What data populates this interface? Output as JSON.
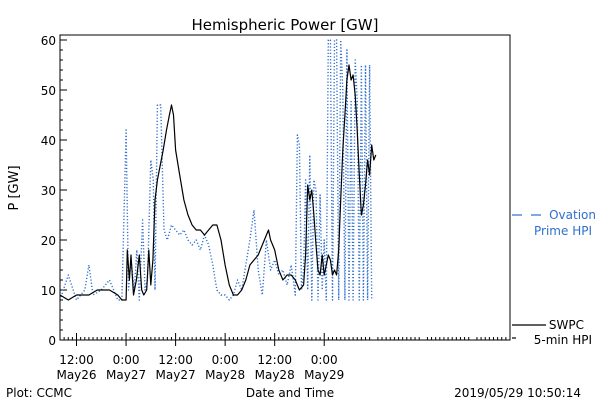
{
  "chart_data": {
    "type": "line",
    "title": "Hemispheric Power [GW]",
    "xlabel": "Date and Time",
    "ylabel": "P [GW]",
    "ylim": [
      0,
      61
    ],
    "xlim": [
      -16,
      93
    ],
    "x_unit": "hours relative to 2019-05-27 00:00 UT",
    "grid": false,
    "y_ticks": [
      0,
      10,
      20,
      30,
      40,
      50,
      60
    ],
    "x_ticks": [
      {
        "x": -12,
        "line1": "12:00",
        "line2": "May26"
      },
      {
        "x": 0,
        "line1": "0:00",
        "line2": "May27"
      },
      {
        "x": 12,
        "line1": "12:00",
        "line2": "May27"
      },
      {
        "x": 24,
        "line1": "0:00",
        "line2": "May28"
      },
      {
        "x": 36,
        "line1": "12:00",
        "line2": "May28"
      },
      {
        "x": 48,
        "line1": "0:00",
        "line2": "May29"
      }
    ],
    "series": [
      {
        "name": "SWPC 5-min HPI",
        "legend_line1": "SWPC",
        "legend_line2": "5-min HPI",
        "color": "#000000",
        "style": "solid",
        "points": [
          [
            -16,
            9
          ],
          [
            -14,
            8
          ],
          [
            -12,
            9
          ],
          [
            -9,
            9
          ],
          [
            -7,
            10
          ],
          [
            -4,
            10
          ],
          [
            -2,
            9
          ],
          [
            -1,
            8
          ],
          [
            0,
            8
          ],
          [
            0.3,
            18
          ],
          [
            0.8,
            12
          ],
          [
            1.2,
            17
          ],
          [
            1.8,
            9
          ],
          [
            2.5,
            12
          ],
          [
            3.2,
            17
          ],
          [
            3.8,
            10
          ],
          [
            4.3,
            9
          ],
          [
            5,
            10
          ],
          [
            5.5,
            18
          ],
          [
            6,
            11
          ],
          [
            6.5,
            16
          ],
          [
            7,
            28
          ],
          [
            7.6,
            32
          ],
          [
            8.3,
            35
          ],
          [
            9,
            38
          ],
          [
            9.8,
            42
          ],
          [
            10.5,
            45
          ],
          [
            11,
            47
          ],
          [
            11.5,
            45
          ],
          [
            12,
            38
          ],
          [
            13,
            33
          ],
          [
            14,
            28
          ],
          [
            15,
            25
          ],
          [
            16,
            23
          ],
          [
            17,
            22
          ],
          [
            18,
            22
          ],
          [
            19,
            21
          ],
          [
            20,
            22
          ],
          [
            21,
            23
          ],
          [
            22,
            23
          ],
          [
            23,
            20
          ],
          [
            24,
            15
          ],
          [
            25,
            11
          ],
          [
            26,
            9
          ],
          [
            27,
            9
          ],
          [
            28,
            10
          ],
          [
            29,
            12
          ],
          [
            30,
            15
          ],
          [
            31,
            16
          ],
          [
            32,
            17
          ],
          [
            33,
            19
          ],
          [
            34,
            21
          ],
          [
            34.5,
            22
          ],
          [
            35,
            20
          ],
          [
            36,
            18
          ],
          [
            37,
            14
          ],
          [
            38,
            12
          ],
          [
            39,
            13
          ],
          [
            40,
            13
          ],
          [
            41,
            12
          ],
          [
            42,
            10
          ],
          [
            43,
            11
          ],
          [
            43.5,
            17
          ],
          [
            44,
            31
          ],
          [
            44.5,
            28
          ],
          [
            45,
            30
          ],
          [
            45.5,
            25
          ],
          [
            46,
            19
          ],
          [
            46.5,
            14
          ],
          [
            47,
            13
          ],
          [
            47.5,
            17
          ],
          [
            48,
            13
          ],
          [
            48.5,
            15
          ],
          [
            49,
            17
          ],
          [
            49.5,
            16
          ],
          [
            50,
            13
          ],
          [
            50.5,
            14
          ],
          [
            51,
            13
          ],
          [
            51.5,
            18
          ],
          [
            52,
            28
          ],
          [
            52.5,
            38
          ],
          [
            53,
            45
          ],
          [
            53.5,
            52
          ],
          [
            54,
            55
          ],
          [
            54.5,
            52
          ],
          [
            55,
            53
          ],
          [
            55.5,
            49
          ],
          [
            56,
            42
          ],
          [
            56.5,
            33
          ],
          [
            57,
            25
          ],
          [
            57.5,
            27
          ],
          [
            58,
            31
          ],
          [
            58.5,
            36
          ],
          [
            59,
            33
          ],
          [
            59.5,
            39
          ],
          [
            60,
            36
          ],
          [
            60.5,
            37
          ]
        ]
      },
      {
        "name": "Ovation Prime HPI",
        "legend_line1": "Ovation",
        "legend_line2": "Prime HPI",
        "color": "#2f6fcf",
        "style": "dotted",
        "points": [
          [
            -16,
            8
          ],
          [
            -14,
            13
          ],
          [
            -12,
            8
          ],
          [
            -10,
            10
          ],
          [
            -9,
            15
          ],
          [
            -8,
            9
          ],
          [
            -6,
            10
          ],
          [
            -4,
            12
          ],
          [
            -2,
            8
          ],
          [
            -1,
            8
          ],
          [
            0,
            42
          ],
          [
            0.6,
            10
          ],
          [
            1.2,
            16
          ],
          [
            2,
            10
          ],
          [
            2.6,
            18
          ],
          [
            3.2,
            8
          ],
          [
            4,
            24
          ],
          [
            4.6,
            10
          ],
          [
            5.2,
            12
          ],
          [
            6,
            36
          ],
          [
            6.6,
            32
          ],
          [
            7,
            10
          ],
          [
            7.6,
            47
          ],
          [
            8.4,
            47
          ],
          [
            9.2,
            22
          ],
          [
            10,
            20
          ],
          [
            11,
            23
          ],
          [
            12,
            22
          ],
          [
            13,
            21
          ],
          [
            14,
            22
          ],
          [
            15,
            20
          ],
          [
            16,
            19
          ],
          [
            17,
            20
          ],
          [
            18,
            18
          ],
          [
            19,
            21
          ],
          [
            20,
            19
          ],
          [
            21,
            15
          ],
          [
            22,
            10
          ],
          [
            23,
            9
          ],
          [
            24,
            9
          ],
          [
            25,
            8
          ],
          [
            26,
            9
          ],
          [
            27,
            12
          ],
          [
            28,
            10
          ],
          [
            29,
            15
          ],
          [
            30,
            20
          ],
          [
            31,
            26
          ],
          [
            32,
            14
          ],
          [
            33,
            9
          ],
          [
            34,
            20
          ],
          [
            35,
            14
          ],
          [
            36,
            16
          ],
          [
            37,
            13
          ],
          [
            38,
            14
          ],
          [
            39,
            11
          ],
          [
            40,
            15
          ],
          [
            41,
            9
          ],
          [
            41.5,
            41
          ],
          [
            42,
            39
          ],
          [
            42.5,
            10
          ],
          [
            43,
            14
          ],
          [
            43.5,
            32
          ],
          [
            44,
            10
          ],
          [
            44.5,
            37
          ],
          [
            45,
            8
          ],
          [
            45.5,
            32
          ],
          [
            46,
            30
          ],
          [
            46.5,
            8
          ],
          [
            47,
            29
          ],
          [
            47.5,
            10
          ],
          [
            48,
            20
          ],
          [
            48.5,
            8
          ],
          [
            49,
            60
          ],
          [
            49.5,
            60
          ],
          [
            50,
            8
          ],
          [
            50.5,
            60
          ],
          [
            51,
            60
          ],
          [
            51.5,
            8
          ],
          [
            52,
            60
          ],
          [
            52.5,
            50
          ],
          [
            53,
            8
          ],
          [
            53.5,
            58
          ],
          [
            54,
            8
          ],
          [
            54.5,
            48
          ],
          [
            55,
            8
          ],
          [
            55.5,
            56
          ],
          [
            56,
            48
          ],
          [
            56.5,
            8
          ],
          [
            57,
            55
          ],
          [
            57.5,
            8
          ],
          [
            58,
            55
          ],
          [
            58.5,
            8
          ],
          [
            59,
            55
          ],
          [
            59.5,
            8
          ]
        ]
      }
    ]
  },
  "footer": {
    "left": "Plot: CCMC",
    "center": "Date and Time",
    "right": "2019/05/29 10:50:14"
  }
}
